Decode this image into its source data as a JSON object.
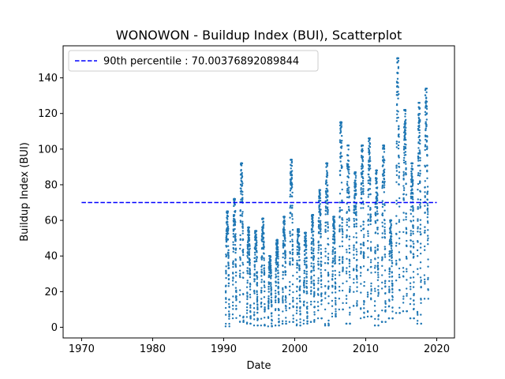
{
  "chart_data": {
    "type": "scatter",
    "title": "WONOWON - Buildup Index (BUI), Scatterplot",
    "xlabel": "Date",
    "ylabel": "Buildup Index (BUI)",
    "xlim": [
      1967.4,
      2022.5
    ],
    "ylim": [
      -6,
      158
    ],
    "xticks": [
      1970,
      1980,
      1990,
      2000,
      2010,
      2020
    ],
    "yticks": [
      0,
      20,
      40,
      60,
      80,
      100,
      120,
      140
    ],
    "grid": false,
    "legend_position": "top-left",
    "reference_line": {
      "label": "90th percentile : 70.00376892089844",
      "value": 70.00376892089844,
      "x_range": [
        1970,
        2020
      ],
      "style": "dashed",
      "color": "#0000ff"
    },
    "series": [
      {
        "color": "#1f77b4",
        "marker_size": 2,
        "seasons": [
          {
            "year": 1990,
            "min": 0.5,
            "max": 65
          },
          {
            "year": 1991,
            "min": 5,
            "max": 72
          },
          {
            "year": 1992,
            "min": 3,
            "max": 92
          },
          {
            "year": 1993,
            "min": 2,
            "max": 56
          },
          {
            "year": 1994,
            "min": 1,
            "max": 54
          },
          {
            "year": 1995,
            "min": 1,
            "max": 61
          },
          {
            "year": 1996,
            "min": 0.5,
            "max": 40
          },
          {
            "year": 1997,
            "min": 1,
            "max": 49
          },
          {
            "year": 1998,
            "min": 2,
            "max": 62
          },
          {
            "year": 1999,
            "min": 3,
            "max": 94
          },
          {
            "year": 2000,
            "min": 1,
            "max": 55
          },
          {
            "year": 2001,
            "min": 2,
            "max": 53
          },
          {
            "year": 2002,
            "min": 3,
            "max": 63
          },
          {
            "year": 2003,
            "min": 5,
            "max": 77
          },
          {
            "year": 2004,
            "min": 1,
            "max": 92
          },
          {
            "year": 2005,
            "min": 6,
            "max": 62
          },
          {
            "year": 2006,
            "min": 10,
            "max": 115
          },
          {
            "year": 2007,
            "min": 2,
            "max": 102
          },
          {
            "year": 2008,
            "min": 12,
            "max": 87
          },
          {
            "year": 2009,
            "min": 5,
            "max": 102
          },
          {
            "year": 2010,
            "min": 6,
            "max": 106
          },
          {
            "year": 2011,
            "min": 1,
            "max": 88
          },
          {
            "year": 2012,
            "min": 3,
            "max": 102
          },
          {
            "year": 2013,
            "min": 5,
            "max": 60
          },
          {
            "year": 2014,
            "min": 8,
            "max": 151
          },
          {
            "year": 2015,
            "min": 9,
            "max": 122
          },
          {
            "year": 2016,
            "min": 5,
            "max": 92
          },
          {
            "year": 2017,
            "min": 2,
            "max": 126
          },
          {
            "year": 2018,
            "min": 16,
            "max": 134
          }
        ]
      }
    ]
  }
}
